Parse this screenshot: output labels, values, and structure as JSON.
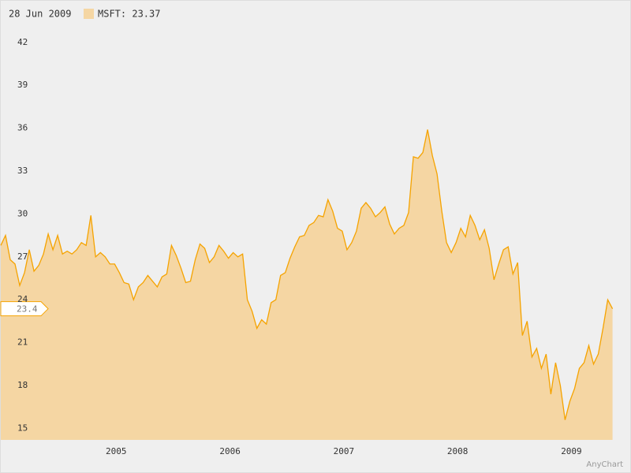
{
  "header": {
    "date": "28 Jun 2009",
    "legend": "MSFT: 23.37"
  },
  "last_label": "23.4",
  "credit": "AnyChart",
  "chart_data": {
    "type": "area",
    "categories": [
      null,
      null,
      null,
      null,
      null,
      null,
      null,
      null,
      null,
      null,
      null,
      null,
      null,
      null,
      null,
      null,
      null,
      null,
      null,
      null,
      null,
      null,
      null,
      null,
      "2005",
      null,
      null,
      null,
      null,
      null,
      null,
      null,
      null,
      null,
      null,
      null,
      null,
      null,
      null,
      null,
      null,
      null,
      null,
      null,
      null,
      null,
      null,
      null,
      "2006",
      null,
      null,
      null,
      null,
      null,
      null,
      null,
      null,
      null,
      null,
      null,
      null,
      null,
      null,
      null,
      null,
      null,
      null,
      null,
      null,
      null,
      null,
      null,
      "2007",
      null,
      null,
      null,
      null,
      null,
      null,
      null,
      null,
      null,
      null,
      null,
      null,
      null,
      null,
      null,
      null,
      null,
      null,
      null,
      null,
      null,
      null,
      null,
      "2008",
      null,
      null,
      null,
      null,
      null,
      null,
      null,
      null,
      null,
      null,
      null,
      null,
      null,
      null,
      null,
      null,
      null,
      null,
      null,
      null,
      null,
      null,
      null,
      "2009",
      null,
      null,
      null,
      null,
      null,
      null,
      null,
      null,
      null
    ],
    "series": [
      {
        "name": "MSFT",
        "color": "#f5a300",
        "fill": "#f5d6a3",
        "values": [
          27.8,
          28.5,
          26.8,
          26.5,
          25.0,
          25.9,
          27.5,
          26.0,
          26.4,
          27.2,
          28.6,
          27.5,
          28.5,
          27.2,
          27.4,
          27.2,
          27.5,
          28.0,
          27.8,
          29.9,
          27.0,
          27.3,
          27.0,
          26.5,
          26.5,
          25.9,
          25.2,
          25.1,
          24.0,
          24.9,
          25.2,
          25.7,
          25.3,
          24.9,
          25.6,
          25.8,
          27.8,
          27.1,
          26.2,
          25.2,
          25.3,
          26.8,
          27.9,
          27.6,
          26.6,
          27.0,
          27.8,
          27.4,
          26.9,
          27.3,
          27.0,
          27.2,
          24.0,
          23.2,
          22.0,
          22.6,
          22.3,
          23.8,
          24.0,
          25.7,
          25.9,
          26.9,
          27.7,
          28.4,
          28.5,
          29.2,
          29.4,
          29.9,
          29.8,
          31.0,
          30.2,
          29.0,
          28.8,
          27.5,
          28.0,
          28.8,
          30.4,
          30.8,
          30.4,
          29.8,
          30.1,
          30.5,
          29.3,
          28.6,
          29.0,
          29.2,
          30.1,
          34.0,
          33.9,
          34.3,
          35.9,
          34.1,
          32.8,
          30.2,
          28.0,
          27.3,
          28.0,
          29.0,
          28.4,
          29.9,
          29.2,
          28.2,
          28.9,
          27.6,
          25.4,
          26.5,
          27.5,
          27.7,
          25.8,
          26.6,
          21.5,
          22.5,
          20.0,
          20.6,
          19.2,
          20.2,
          17.4,
          19.6,
          18.0,
          15.6,
          16.9,
          17.8,
          19.2,
          19.6,
          20.8,
          19.5,
          20.2,
          22.0,
          24.0,
          23.37
        ]
      }
    ],
    "ylim": [
      14.2,
      43.2
    ],
    "yticks": [
      15,
      18,
      21,
      24,
      27,
      30,
      33,
      36,
      39,
      42
    ]
  }
}
